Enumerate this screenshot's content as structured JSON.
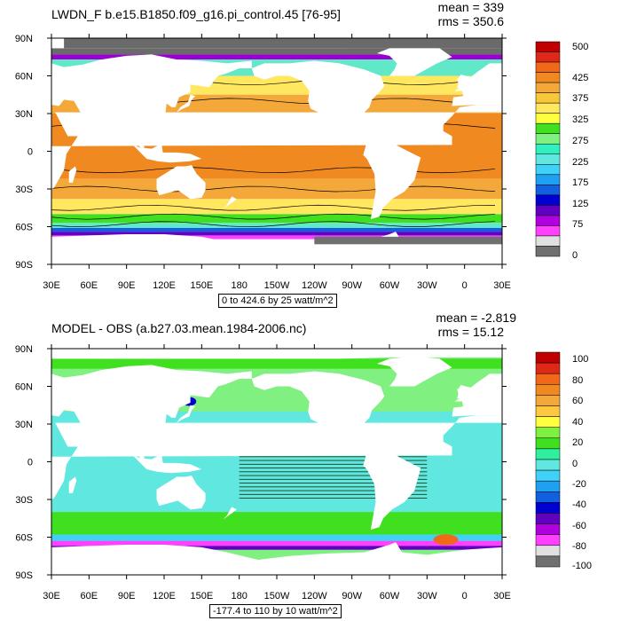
{
  "chart_data": [
    {
      "type": "heatmap",
      "title": "LWDN_F b.e15.B1850.f09_g16.pi_control.45 [76-95]",
      "mean_text": "mean = 339",
      "rms_text": "rms = 350.6",
      "contour_text": "0 to 424.6 by 25 watt/m^2",
      "x_ticks": [
        "30E",
        "60E",
        "90E",
        "120E",
        "150E",
        "180",
        "150W",
        "120W",
        "90W",
        "60W",
        "30W",
        "0",
        "30E"
      ],
      "y_ticks": [
        "90N",
        "60N",
        "30N",
        "0",
        "30S",
        "60S",
        "90S"
      ],
      "colorbar_labels": [
        "500",
        "425",
        "375",
        "325",
        "275",
        "225",
        "175",
        "125",
        "75",
        "0"
      ],
      "colorbar_colors": [
        "#c00000",
        "#e02818",
        "#f06818",
        "#f08a20",
        "#f4a83a",
        "#f8c838",
        "#ffe860",
        "#ffff40",
        "#40e020",
        "#80f080",
        "#30f0c0",
        "#60e8e0",
        "#40d0f8",
        "#20a0f0",
        "#1060e0",
        "#0000d0",
        "#6000c0",
        "#b000e0",
        "#ff40ff",
        "#e0e0e0",
        "#707070"
      ],
      "regions": {
        "north_high": "#6a6a6a",
        "north_edge": "#9a00d0",
        "ice": "#40d0f8",
        "subpolar": "#60e8c8",
        "midlat": "#ffe860",
        "subtropic": "#f4a83a",
        "tropic": "#f08a20",
        "south_mid": "#ffe860",
        "south_sub": "#40e020",
        "south_cold": "#1060e0",
        "south_ice": "#6000c0",
        "south_edge": "#ff40ff",
        "antarctic": "#707070"
      }
    },
    {
      "type": "heatmap",
      "title": "MODEL - OBS (a.b27.03.mean.1984-2006.nc)",
      "mean_text": "mean = -2.819",
      "rms_text": "rms = 15.12",
      "contour_text": "-177.4 to 110 by 10 watt/m^2",
      "x_ticks": [
        "30E",
        "60E",
        "90E",
        "120E",
        "150E",
        "180",
        "150W",
        "120W",
        "90W",
        "60W",
        "30W",
        "0",
        "30E"
      ],
      "y_ticks": [
        "90N",
        "60N",
        "30N",
        "0",
        "30S",
        "60S",
        "90S"
      ],
      "colorbar_labels": [
        "100",
        "80",
        "60",
        "40",
        "20",
        "0",
        "-20",
        "-40",
        "-60",
        "-80",
        "-100"
      ],
      "colorbar_colors": [
        "#c00000",
        "#e02818",
        "#f06818",
        "#f08a20",
        "#f4a83a",
        "#ffc840",
        "#ffff40",
        "#80f040",
        "#40e020",
        "#30f0a0",
        "#60e8e0",
        "#40d0f8",
        "#20a0f0",
        "#1060e0",
        "#0000d0",
        "#6000c0",
        "#b000e0",
        "#ff40ff",
        "#e0e0e0",
        "#707070"
      ],
      "regions": {
        "base": "#80f080",
        "cyan": "#60e8e0",
        "green": "#40e020",
        "blue": "#40d0f8",
        "orange": "#f06818",
        "magenta": "#ff40ff",
        "purple": "#6000c0"
      }
    }
  ]
}
